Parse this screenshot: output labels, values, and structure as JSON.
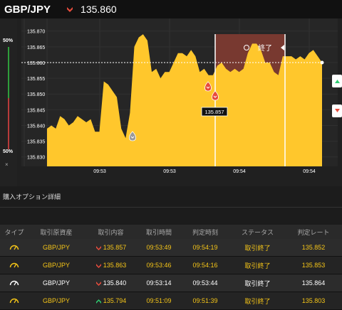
{
  "header": {
    "pair": "GBP/JPY",
    "direction_icon": "low-arrow-icon",
    "current_price": "135.860"
  },
  "chart": {
    "left_top_pct": "50%",
    "left_bottom_pct": "50%",
    "close_label": "×",
    "y_ticks": [
      "135.870",
      "135.865",
      "135.860",
      "135.855",
      "135.850",
      "135.845",
      "135.840",
      "135.835",
      "135.830"
    ],
    "x_ticks": [
      "09:53",
      "09:53",
      "09:54",
      "09:54"
    ],
    "end_label": "終了",
    "marker_label": "135.857",
    "colors": {
      "area": "#ffc72c",
      "end_zone": "#7c3a30",
      "low": "#e74c3c",
      "high": "#2ecc71"
    }
  },
  "chart_data": {
    "type": "area",
    "series": [
      {
        "values": [
          135.839,
          135.84,
          135.839,
          135.843,
          135.842,
          135.84,
          135.841,
          135.843,
          135.842,
          135.841,
          135.842,
          135.838,
          135.838,
          135.854,
          135.853,
          135.851,
          135.849,
          135.839,
          135.836,
          135.844,
          135.865,
          135.868,
          135.869,
          135.867,
          135.857,
          135.858,
          135.855,
          135.857,
          135.857,
          135.86,
          135.863,
          135.863,
          135.862,
          135.864,
          135.862,
          135.857,
          135.858,
          135.856,
          135.856,
          135.859,
          135.86,
          135.858,
          135.857,
          135.858,
          135.857,
          135.858,
          135.863,
          135.866,
          135.866,
          135.864,
          135.86,
          135.86,
          135.857,
          135.856,
          135.862,
          135.862,
          135.862,
          135.861,
          135.862,
          135.861,
          135.863,
          135.864,
          135.862,
          135.86
        ]
      }
    ],
    "ylim": [
      135.827,
      135.874
    ],
    "current_line": 135.86
  },
  "section": {
    "title": "購入オプション詳細"
  },
  "table": {
    "columns": [
      "タイプ",
      "取引原資産",
      "取引内容",
      "取引時間",
      "判定時刻",
      "ステータス",
      "判定レート"
    ],
    "rows": [
      {
        "type_icon": "gauge-icon",
        "asset": "GBP/JPY",
        "direction": "low",
        "rate": "135.857",
        "trade_time": "09:53:49",
        "judge_time": "09:54:19",
        "status": "取引終了",
        "judge_rate": "135.852",
        "highlight": true
      },
      {
        "type_icon": "gauge-icon",
        "asset": "GBP/JPY",
        "direction": "low",
        "rate": "135.863",
        "trade_time": "09:53:46",
        "judge_time": "09:54:16",
        "status": "取引終了",
        "judge_rate": "135.853",
        "highlight": true
      },
      {
        "type_icon": "gauge-icon",
        "asset": "GBP/JPY",
        "direction": "low",
        "rate": "135.840",
        "trade_time": "09:53:14",
        "judge_time": "09:53:44",
        "status": "取引終了",
        "judge_rate": "135.864",
        "highlight": false
      },
      {
        "type_icon": "gauge-icon",
        "asset": "GBP/JPY",
        "direction": "high",
        "rate": "135.794",
        "trade_time": "09:51:09",
        "judge_time": "09:51:39",
        "status": "取引終了",
        "judge_rate": "135.803",
        "highlight": true
      }
    ]
  }
}
